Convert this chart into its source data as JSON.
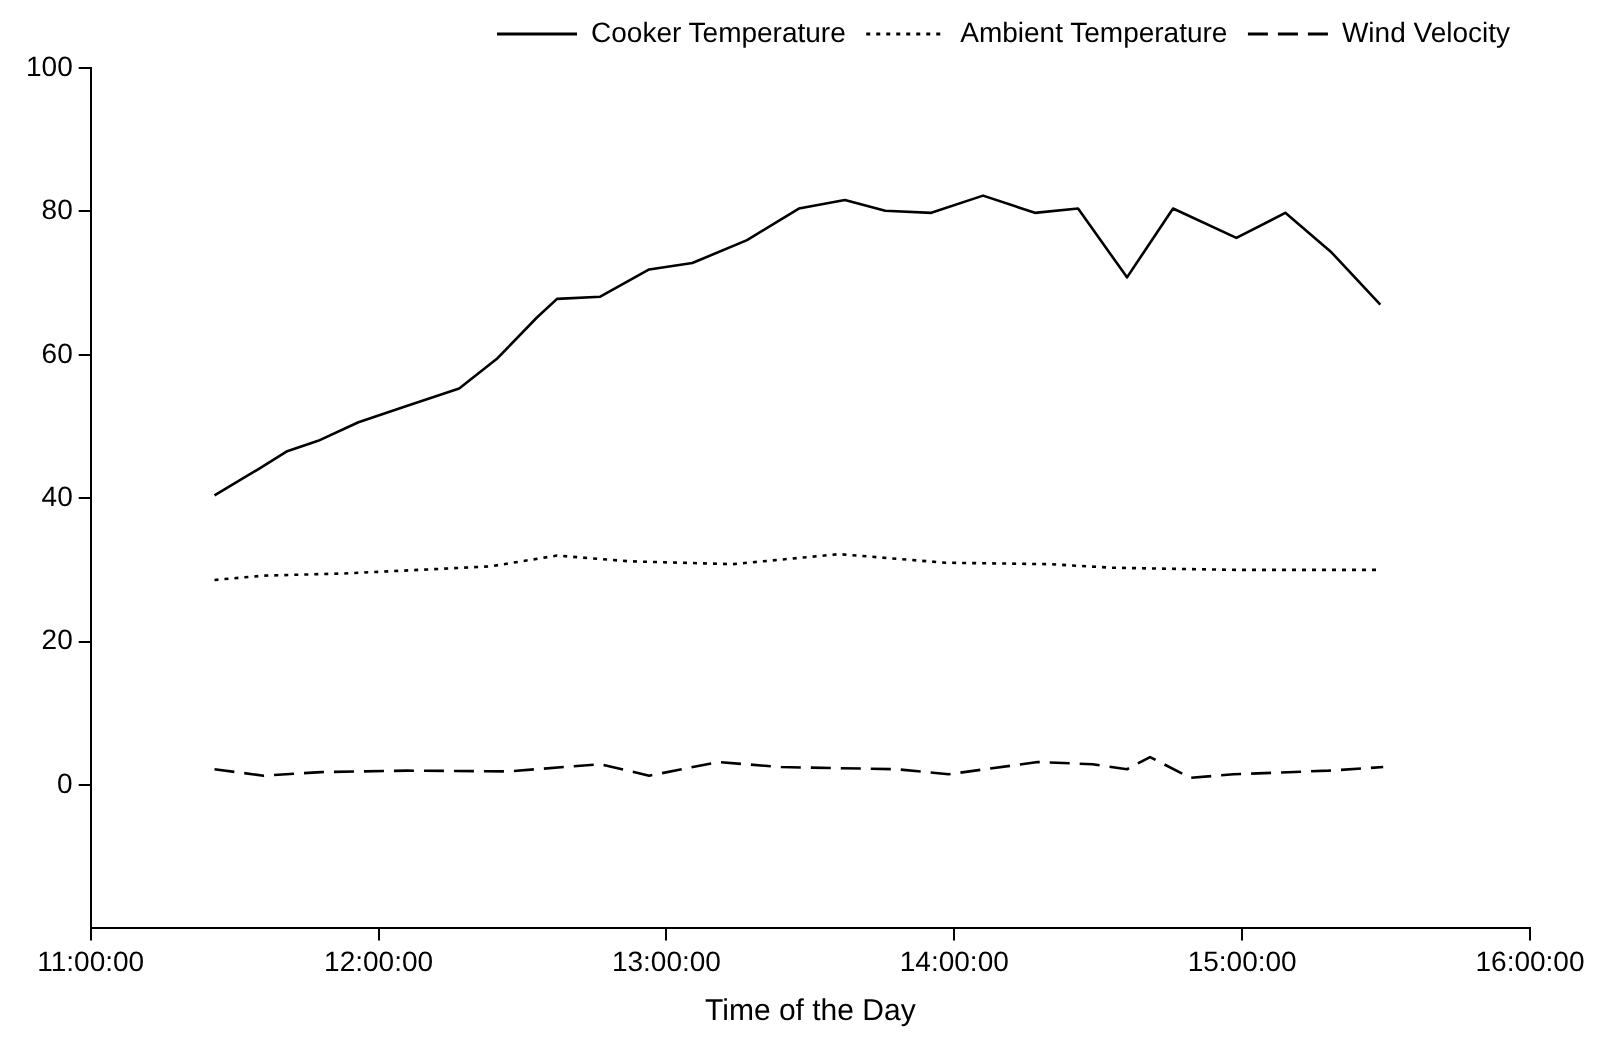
{
  "chart_data": {
    "type": "line",
    "xlabel": "Time of the Day",
    "xlim": [
      11,
      16
    ],
    "xticks": [
      {
        "value": 11,
        "label": "11:00:00"
      },
      {
        "value": 12,
        "label": "12:00:00"
      },
      {
        "value": 13,
        "label": "13:00:00"
      },
      {
        "value": 14,
        "label": "14:00:00"
      },
      {
        "value": 15,
        "label": "15:00:00"
      },
      {
        "value": 16,
        "label": "16:00:00"
      }
    ],
    "ylim": [
      -20,
      100
    ],
    "yticks": [
      0,
      20,
      40,
      60,
      80,
      100
    ],
    "grid": false,
    "legend": "top right",
    "marker": "none",
    "series": [
      {
        "name": "Cooker Temperature",
        "color": "#000000",
        "line_style": "solid",
        "x": [
          11.43,
          11.58,
          11.68,
          11.79,
          11.93,
          12.1,
          12.28,
          12.41,
          12.55,
          12.62,
          12.77,
          12.94,
          13.09,
          13.28,
          13.46,
          13.62,
          13.76,
          13.92,
          14.1,
          14.28,
          14.43,
          14.6,
          14.76,
          14.98,
          15.15,
          15.31,
          15.48
        ],
        "values": [
          40.4,
          44,
          46.5,
          48,
          50.6,
          52.9,
          55.3,
          59.4,
          65.2,
          67.8,
          68.1,
          71.9,
          72.8,
          76,
          80.4,
          81.6,
          80.1,
          79.8,
          82.2,
          79.8,
          80.4,
          70.8,
          80.4,
          76.3,
          79.8,
          74.3,
          67
        ]
      },
      {
        "name": "Ambient Temperature",
        "color": "#000000",
        "line_style": "dotted",
        "x": [
          11.43,
          11.6,
          11.88,
          12.19,
          12.39,
          12.62,
          12.87,
          13.23,
          13.6,
          13.97,
          14.33,
          14.55,
          14.98,
          15.48
        ],
        "values": [
          28.6,
          29.2,
          29.5,
          30.1,
          30.5,
          32,
          31.2,
          30.8,
          32.2,
          31,
          30.8,
          30.3,
          30,
          30
        ]
      },
      {
        "name": "Wind Velocity",
        "color": "#000000",
        "line_style": "dashed",
        "x": [
          11.43,
          11.6,
          11.8,
          12.1,
          12.45,
          12.77,
          12.94,
          13.18,
          13.4,
          13.8,
          13.98,
          14.29,
          14.48,
          14.6,
          14.68,
          14.82,
          14.97,
          15.3,
          15.49
        ],
        "values": [
          2.2,
          1.3,
          1.8,
          2,
          1.9,
          2.9,
          1.3,
          3.2,
          2.5,
          2.2,
          1.5,
          3.2,
          2.9,
          2.2,
          3.9,
          1,
          1.5,
          2,
          2.5
        ]
      }
    ]
  }
}
